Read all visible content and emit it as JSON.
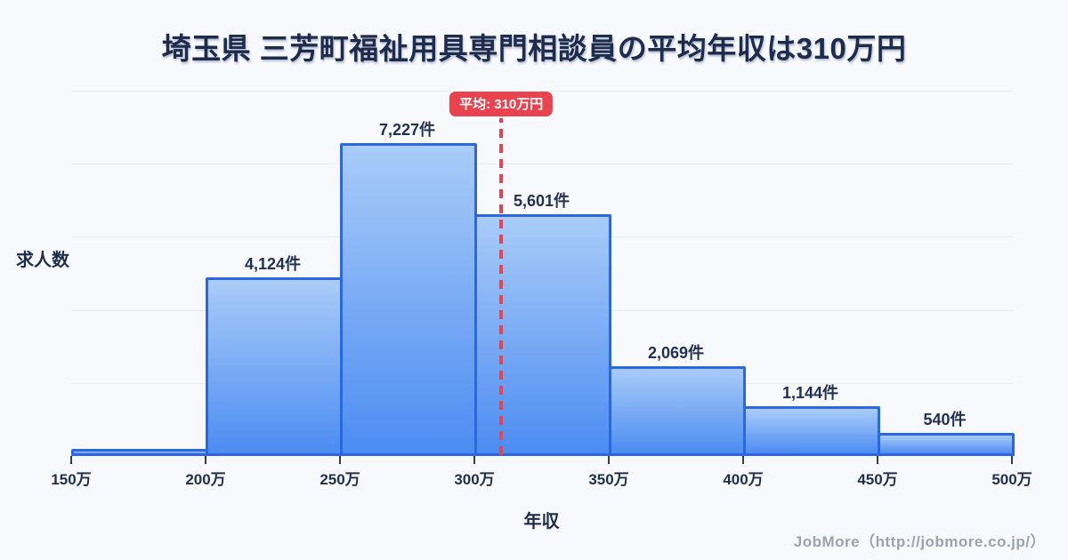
{
  "page": {
    "title": "埼玉県 三芳町福祉用具専門相談員の平均年収は310万円",
    "footer_credit": "JobMore（http://jobmore.co.jp/）"
  },
  "chart_data": {
    "type": "bar",
    "subtype": "histogram",
    "title": "埼玉県 三芳町福祉用具専門相談員の平均年収は310万円",
    "xlabel": "年収",
    "ylabel": "求人数",
    "x_ticks": [
      "150万",
      "200万",
      "250万",
      "300万",
      "350万",
      "400万",
      "450万",
      "500万"
    ],
    "x_range_man_yen": [
      150,
      500
    ],
    "bin_width_man_yen": 50,
    "bars": [
      {
        "range": "150万-200万",
        "value": 160,
        "label": ""
      },
      {
        "range": "200万-250万",
        "value": 4124,
        "label": "4,124件"
      },
      {
        "range": "250万-300万",
        "value": 7227,
        "label": "7,227件"
      },
      {
        "range": "300万-350万",
        "value": 5601,
        "label": "5,601件"
      },
      {
        "range": "350万-400万",
        "value": 2069,
        "label": "2,069件"
      },
      {
        "range": "400万-450万",
        "value": 1144,
        "label": "1,144件"
      },
      {
        "range": "450万-500万",
        "value": 540,
        "label": "540件"
      }
    ],
    "average": {
      "value_man_yen": 310,
      "label": "平均: 310万円"
    },
    "grid": true,
    "gridline_count": 5,
    "y_axis_visible_max": 8450,
    "legend": "none"
  },
  "colors": {
    "background": "#f7f9fc",
    "title_text": "#1d2b4d",
    "bar_fill_top": "#a9ccf8",
    "bar_fill_bottom": "#4c8cf1",
    "bar_border": "#2a68e2",
    "gridline": "#e6ebf3",
    "average_accent": "#e8434e",
    "tick_text": "#22304f",
    "footer_text": "#9ba3ae"
  }
}
